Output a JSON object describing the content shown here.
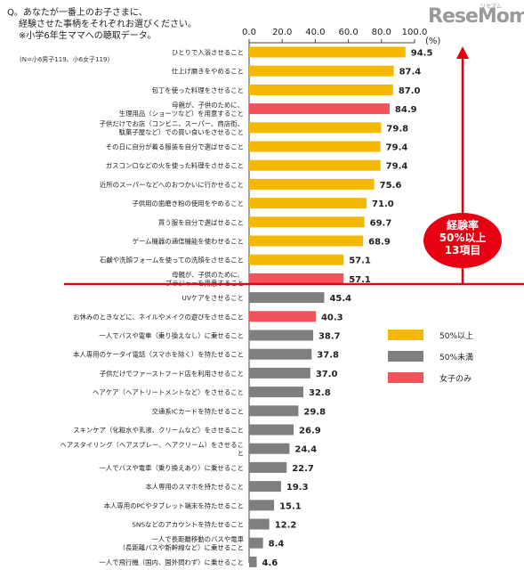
{
  "question": {
    "lines": [
      "Q。あなたが一番上のお子さまに、",
      "経験させた事柄をそれぞれお選びください。",
      "※小学6年生ママへの聴取データ。"
    ],
    "sample_note": "(N=小6男子119、小6女子119)"
  },
  "logo": {
    "text": "ReseMom",
    "sub": "リセマム"
  },
  "chart_data": {
    "type": "bar",
    "orientation": "horizontal",
    "unit": "(%)",
    "xlim": [
      0,
      100
    ],
    "ticks": [
      "0.0",
      "20.0",
      "40.0",
      "60.0",
      "80.0",
      "100.0"
    ],
    "legend": [
      {
        "label": "50%以上",
        "color": "#F5B800"
      },
      {
        "label": "50%未満",
        "color": "#7F7F7F"
      },
      {
        "label": "女子のみ",
        "color": "#F2535B"
      }
    ],
    "annotation": {
      "lines": [
        "経験率",
        "50%以上",
        "13項目"
      ],
      "color": "#E60012"
    },
    "bars": [
      {
        "label": [
          "ひとりで入浴させること"
        ],
        "value": 94.5,
        "group": "50%以上"
      },
      {
        "label": [
          "仕上げ磨きをやめること"
        ],
        "value": 87.4,
        "group": "50%以上"
      },
      {
        "label": [
          "包丁を使った料理をさせること"
        ],
        "value": 87.0,
        "group": "50%以上"
      },
      {
        "label": [
          "母親が、子供のために、",
          "生理用品（ショーツなど）を用意すること"
        ],
        "value": 84.9,
        "group": "女子のみ"
      },
      {
        "label": [
          "子供だけでお店（コンビニ、スーパー、商店街、",
          "駄菓子屋など）での買い食いをさせること"
        ],
        "value": 79.8,
        "group": "50%以上"
      },
      {
        "label": [
          "その日に自分が着る服装を自分で選ばせること"
        ],
        "value": 79.4,
        "group": "50%以上"
      },
      {
        "label": [
          "ガスコンロなどの火を使った料理をさせること"
        ],
        "value": 79.4,
        "group": "50%以上"
      },
      {
        "label": [
          "近所のスーパーなどへのおつかいに行かせること"
        ],
        "value": 75.6,
        "group": "50%以上"
      },
      {
        "label": [
          "子供用の歯磨き粉の使用をやめること"
        ],
        "value": 71.0,
        "group": "50%以上"
      },
      {
        "label": [
          "買う服を自分で選ばせること"
        ],
        "value": 69.7,
        "group": "50%以上"
      },
      {
        "label": [
          "ゲーム機器の通信機能を使わせること"
        ],
        "value": 68.9,
        "group": "50%以上"
      },
      {
        "label": [
          "石鹸や洗顔フォームを使っての洗顔をさせること"
        ],
        "value": 57.1,
        "group": "50%以上"
      },
      {
        "label": [
          "母親が、子供のために、",
          "ブラジャーを用意すること"
        ],
        "value": 57.1,
        "group": "女子のみ"
      },
      {
        "label": [
          "UVケアをさせること"
        ],
        "value": 45.4,
        "group": "50%未満"
      },
      {
        "label": [
          "お休みのときなどに、ネイルやメイクの遊びをさせること"
        ],
        "value": 40.3,
        "group": "女子のみ"
      },
      {
        "label": [
          "一人でバスや電車（乗り換えなし）に乗せること"
        ],
        "value": 38.7,
        "group": "50%未満"
      },
      {
        "label": [
          "本人専用のケータイ電話（スマホを除く）を持たせること"
        ],
        "value": 37.8,
        "group": "50%未満"
      },
      {
        "label": [
          "子供だけでファーストフード店を利用させること"
        ],
        "value": 37.0,
        "group": "50%未満"
      },
      {
        "label": [
          "ヘアケア（ヘアトリートメントなど）をさせること"
        ],
        "value": 32.8,
        "group": "50%未満"
      },
      {
        "label": [
          "交通系ICカードを持たせること"
        ],
        "value": 29.8,
        "group": "50%未満"
      },
      {
        "label": [
          "スキンケア（化粧水や乳液、クリームなど）をさせること"
        ],
        "value": 26.9,
        "group": "50%未満"
      },
      {
        "label": [
          "ヘアスタイリング（ヘアスプレー、ヘアクリーム）をさせるこ",
          "と"
        ],
        "value": 24.4,
        "group": "50%未満"
      },
      {
        "label": [
          "一人でバスや電車（乗り換えあり）に乗せること"
        ],
        "value": 22.7,
        "group": "50%未満"
      },
      {
        "label": [
          "本人専用のスマホを持たせること"
        ],
        "value": 19.3,
        "group": "50%未満"
      },
      {
        "label": [
          "本人専用のPCやタブレット端末を持たせること"
        ],
        "value": 15.1,
        "group": "50%未満"
      },
      {
        "label": [
          "SNSなどのアカウントを持たせること"
        ],
        "value": 12.2,
        "group": "50%未満"
      },
      {
        "label": [
          "一人で長距離移動のバスや電車",
          "（長距離バスや新幹線など）に乗せること"
        ],
        "value": 8.4,
        "group": "50%未満"
      },
      {
        "label": [
          "一人で飛行機（国内、国外問わず）に乗せること"
        ],
        "value": 4.6,
        "group": "50%未満"
      }
    ]
  }
}
